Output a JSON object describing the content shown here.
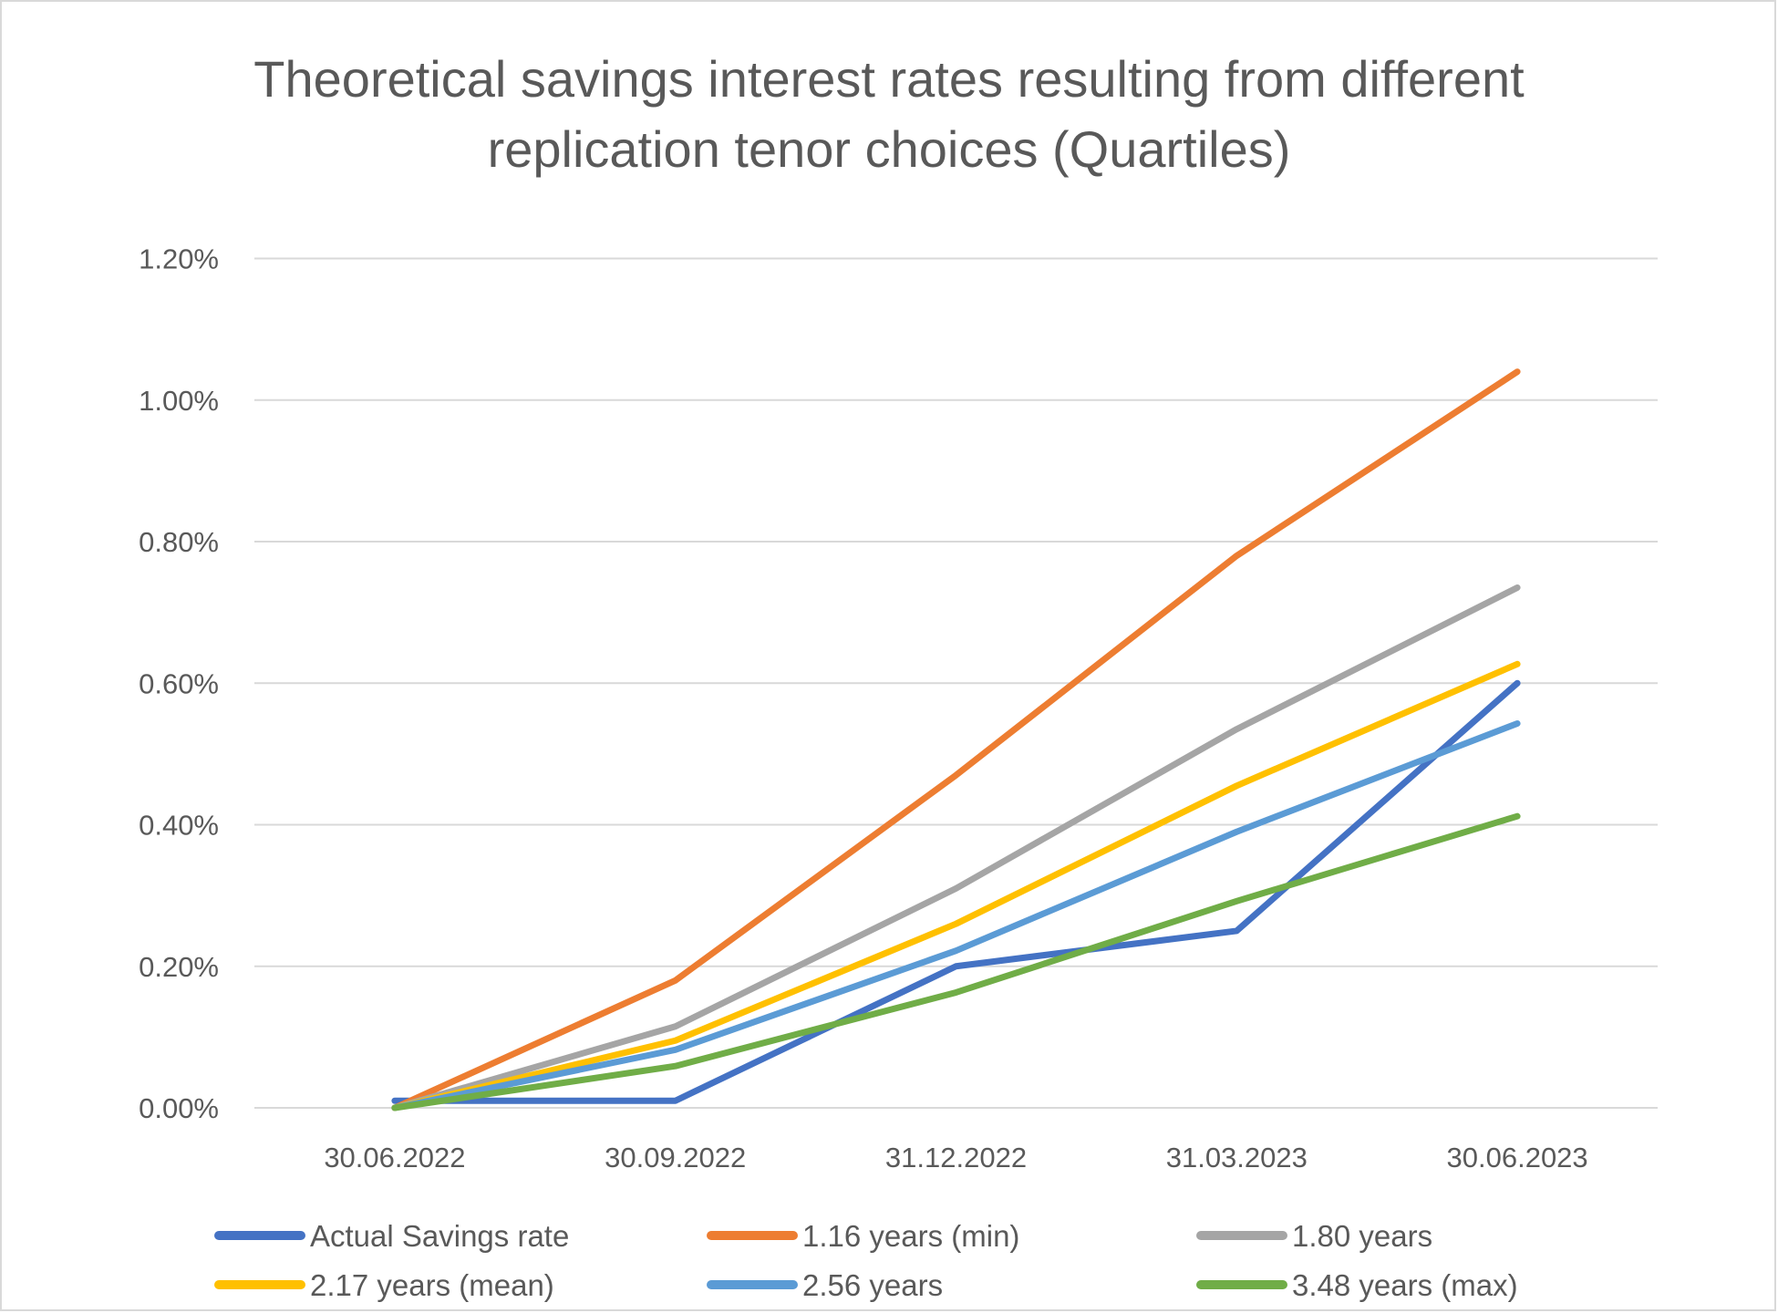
{
  "chart_data": {
    "type": "line",
    "title": [
      "Theoretical savings interest rates resulting from different",
      "replication tenor choices (Quartiles)"
    ],
    "xlabel": "",
    "ylabel": "",
    "categories": [
      "30.06.2022",
      "30.09.2022",
      "31.12.2022",
      "31.03.2023",
      "30.06.2023"
    ],
    "ylim": [
      0,
      1.2
    ],
    "yticks": [
      "0.00%",
      "0.20%",
      "0.40%",
      "0.60%",
      "0.80%",
      "1.00%",
      "1.20%"
    ],
    "ytick_values": [
      0,
      0.2,
      0.4,
      0.6,
      0.8,
      1.0,
      1.2
    ],
    "grid": "horizontal",
    "legend_position": "bottom",
    "series": [
      {
        "name": "Actual Savings rate",
        "color": "#4472C4",
        "values": [
          0.01,
          0.01,
          0.2,
          0.25,
          0.6
        ]
      },
      {
        "name": "1.16 years (min)",
        "color": "#ED7D31",
        "values": [
          0.0,
          0.18,
          0.47,
          0.78,
          1.04
        ]
      },
      {
        "name": "1.80 years",
        "color": "#A5A5A5",
        "values": [
          0.0,
          0.115,
          0.31,
          0.535,
          0.735
        ]
      },
      {
        "name": "2.17 years (mean)",
        "color": "#FFC000",
        "values": [
          0.0,
          0.095,
          0.26,
          0.455,
          0.627
        ]
      },
      {
        "name": "2.56 years",
        "color": "#5B9BD5",
        "values": [
          0.0,
          0.082,
          0.222,
          0.39,
          0.543
        ]
      },
      {
        "name": "3.48 years (max)",
        "color": "#70AD47",
        "values": [
          0.0,
          0.059,
          0.163,
          0.292,
          0.412
        ]
      }
    ]
  }
}
